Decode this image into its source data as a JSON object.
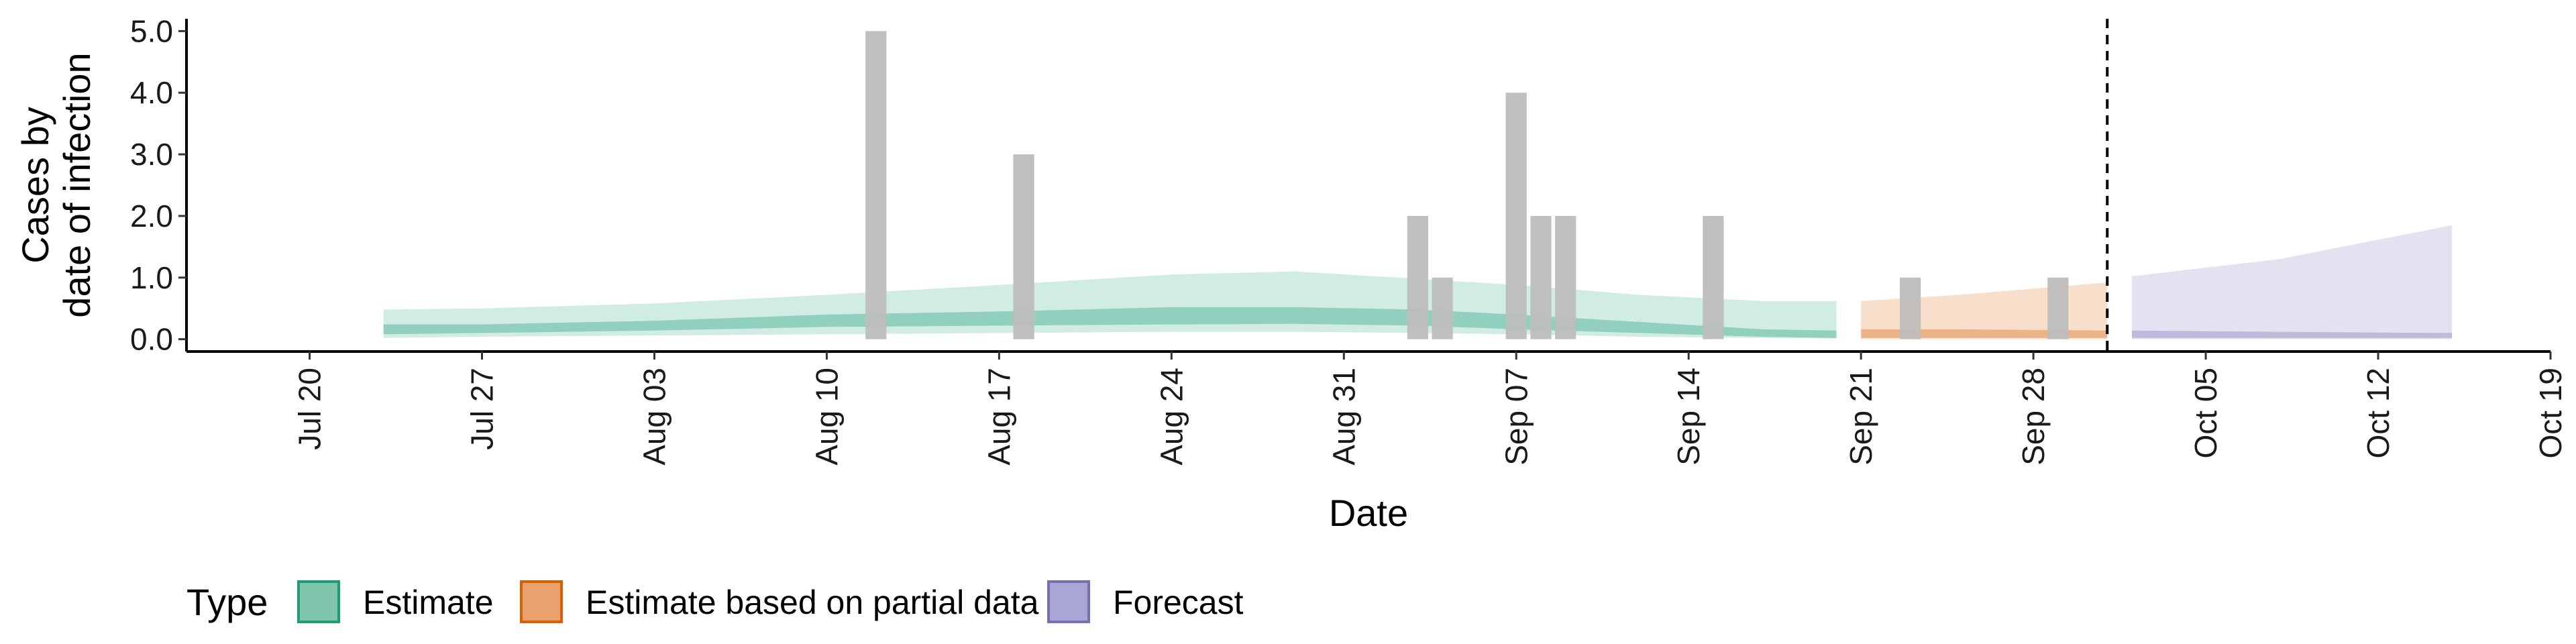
{
  "chart_data": {
    "type": "area",
    "xlabel": "Date",
    "ylabel": [
      "Cases by",
      "date of infection"
    ],
    "ylim": [
      -0.2,
      5.2
    ],
    "xlim": [
      "2020-07-15",
      "2020-10-19"
    ],
    "yticks": [
      {
        "value": 0,
        "label": "0.0"
      },
      {
        "value": 1,
        "label": "1.0"
      },
      {
        "value": 2,
        "label": "2.0"
      },
      {
        "value": 3,
        "label": "3.0"
      },
      {
        "value": 4,
        "label": "4.0"
      },
      {
        "value": 5,
        "label": "5.0"
      }
    ],
    "xticks": [
      {
        "date": "2020-07-20",
        "label": "Jul 20"
      },
      {
        "date": "2020-07-27",
        "label": "Jul 27"
      },
      {
        "date": "2020-08-03",
        "label": "Aug 03"
      },
      {
        "date": "2020-08-10",
        "label": "Aug 10"
      },
      {
        "date": "2020-08-17",
        "label": "Aug 17"
      },
      {
        "date": "2020-08-24",
        "label": "Aug 24"
      },
      {
        "date": "2020-08-31",
        "label": "Aug 31"
      },
      {
        "date": "2020-09-07",
        "label": "Sep 07"
      },
      {
        "date": "2020-09-14",
        "label": "Sep 14"
      },
      {
        "date": "2020-09-21",
        "label": "Sep 21"
      },
      {
        "date": "2020-09-28",
        "label": "Sep 28"
      },
      {
        "date": "2020-10-05",
        "label": "Oct 05"
      },
      {
        "date": "2020-10-12",
        "label": "Oct 12"
      },
      {
        "date": "2020-10-19",
        "label": "Oct 19"
      }
    ],
    "observed_cases": [
      {
        "date": "2020-08-12",
        "value": 5
      },
      {
        "date": "2020-08-18",
        "value": 3
      },
      {
        "date": "2020-09-03",
        "value": 2
      },
      {
        "date": "2020-09-04",
        "value": 1
      },
      {
        "date": "2020-09-07",
        "value": 4
      },
      {
        "date": "2020-09-08",
        "value": 2
      },
      {
        "date": "2020-09-09",
        "value": 2
      },
      {
        "date": "2020-09-15",
        "value": 2
      },
      {
        "date": "2020-09-23",
        "value": 1
      },
      {
        "date": "2020-09-29",
        "value": 1
      }
    ],
    "bar_color": "#bdbdbd",
    "forecast_start_line": "2020-10-01",
    "series": [
      {
        "name": "Estimate",
        "color": "#1b9e77",
        "fill": "#7fc6ac",
        "points": [
          {
            "date": "2020-07-23",
            "lower90": 0.02,
            "upper90": 0.48,
            "lower50": 0.08,
            "upper50": 0.24
          },
          {
            "date": "2020-07-27",
            "lower90": 0.04,
            "upper90": 0.5,
            "lower50": 0.1,
            "upper50": 0.24
          },
          {
            "date": "2020-08-03",
            "lower90": 0.06,
            "upper90": 0.58,
            "lower50": 0.14,
            "upper50": 0.3
          },
          {
            "date": "2020-08-10",
            "lower90": 0.08,
            "upper90": 0.72,
            "lower50": 0.2,
            "upper50": 0.4
          },
          {
            "date": "2020-08-17",
            "lower90": 0.1,
            "upper90": 0.88,
            "lower50": 0.22,
            "upper50": 0.45
          },
          {
            "date": "2020-08-24",
            "lower90": 0.12,
            "upper90": 1.05,
            "lower50": 0.24,
            "upper50": 0.52
          },
          {
            "date": "2020-08-29",
            "lower90": 0.12,
            "upper90": 1.1,
            "lower50": 0.25,
            "upper50": 0.52
          },
          {
            "date": "2020-09-03",
            "lower90": 0.1,
            "upper90": 0.98,
            "lower50": 0.22,
            "upper50": 0.48
          },
          {
            "date": "2020-09-07",
            "lower90": 0.08,
            "upper90": 0.88,
            "lower50": 0.16,
            "upper50": 0.4
          },
          {
            "date": "2020-09-12",
            "lower90": 0.04,
            "upper90": 0.72,
            "lower50": 0.1,
            "upper50": 0.28
          },
          {
            "date": "2020-09-17",
            "lower90": 0.02,
            "upper90": 0.62,
            "lower50": 0.04,
            "upper50": 0.16
          },
          {
            "date": "2020-09-20",
            "lower90": 0.01,
            "upper90": 0.62,
            "lower50": 0.02,
            "upper50": 0.14
          }
        ]
      },
      {
        "name": "Estimate based on partial data",
        "color": "#d95f02",
        "fill": "#f3c3a0",
        "points": [
          {
            "date": "2020-09-21",
            "lower90": 0.0,
            "upper90": 0.62,
            "lower50": 0.02,
            "upper50": 0.16
          },
          {
            "date": "2020-09-25",
            "lower90": 0.0,
            "upper90": 0.72,
            "lower50": 0.02,
            "upper50": 0.16
          },
          {
            "date": "2020-10-01",
            "lower90": 0.0,
            "upper90": 0.92,
            "lower50": 0.02,
            "upper50": 0.14
          }
        ]
      },
      {
        "name": "Forecast",
        "color": "#7570b3",
        "fill": "#d8d6ea",
        "points": [
          {
            "date": "2020-10-02",
            "lower90": 0.0,
            "upper90": 1.02,
            "lower50": 0.02,
            "upper50": 0.14
          },
          {
            "date": "2020-10-08",
            "lower90": 0.0,
            "upper90": 1.3,
            "lower50": 0.02,
            "upper50": 0.12
          },
          {
            "date": "2020-10-15",
            "lower90": 0.0,
            "upper90": 1.85,
            "lower50": 0.02,
            "upper50": 0.1
          }
        ]
      }
    ],
    "legend": {
      "title": "Type",
      "position": "bottom",
      "items": [
        {
          "label": "Estimate",
          "fill": "#7fc6ac",
          "stroke": "#1b9e77"
        },
        {
          "label": "Estimate based on partial data",
          "fill": "#eba16e",
          "stroke": "#d95f02"
        },
        {
          "label": "Forecast",
          "fill": "#aaa6d3",
          "stroke": "#7570b3"
        }
      ]
    }
  }
}
